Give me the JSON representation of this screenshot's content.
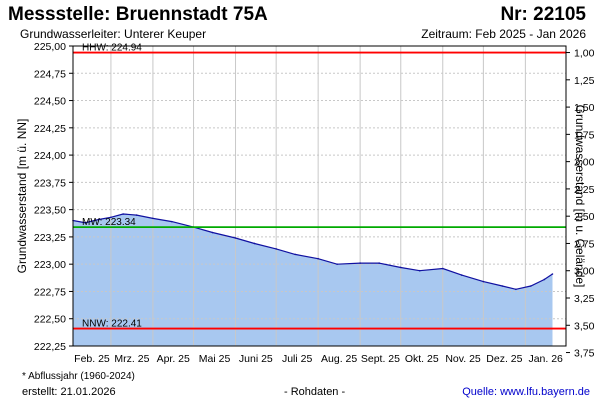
{
  "header": {
    "title": "Messstelle: Bruennstadt 75A",
    "number": "Nr: 22105",
    "aquifer": "Grundwasserleiter:   Unterer Keuper",
    "period": "Zeitraum: Feb 2025 - Jan 2026"
  },
  "footer": {
    "footnote": "* Abflussjahr (1960-2024)",
    "created": "erstellt:   21.01.2026",
    "raw_data": "- Rohdaten -",
    "source": "Quelle:  www.lfu.bayern.de"
  },
  "colors": {
    "hhw_line": "#ff0000",
    "nnw_line": "#ff0000",
    "mw_line": "#00aa00",
    "area_fill": "#a8c8f0",
    "series_line": "#1010a0",
    "grid": "#c8c8c8"
  },
  "chart_data": {
    "type": "area",
    "ylabel_left": "Grundwasserstand [m ü. NN]",
    "ylabel_right": "Grundwasserstand [m u. Gelände]",
    "ylim": [
      222.25,
      225.0
    ],
    "y_ticks_left": [
      "225,00",
      "224,75",
      "224,50",
      "224,25",
      "224,00",
      "223,75",
      "223,50",
      "223,25",
      "223,00",
      "222,75",
      "222,50",
      "222,25"
    ],
    "y_ticks_right": [
      "1,00",
      "1,25",
      "1,50",
      "1,75",
      "2,00",
      "2,25",
      "2,50",
      "2,75",
      "3,00",
      "3,25",
      "3,50",
      "3,75"
    ],
    "x_ticks": [
      "Feb. 25",
      "Mrz. 25",
      "Apr. 25",
      "Mai 25",
      "Juni 25",
      "Juli 25",
      "Aug. 25",
      "Sept. 25",
      "Okt. 25",
      "Nov. 25",
      "Dez. 25",
      "Jan. 26"
    ],
    "grid": true,
    "reference_lines": [
      {
        "label": "HHW: 224.94",
        "value": 224.94
      },
      {
        "label": "MW: 223.34",
        "value": 223.34
      },
      {
        "label": "NNW: 222.41",
        "value": 222.41
      }
    ],
    "series": [
      {
        "x": [
          "2025-02-01",
          "2025-02-10",
          "2025-02-20",
          "2025-03-01",
          "2025-03-10",
          "2025-03-20",
          "2025-04-01",
          "2025-04-15",
          "2025-05-01",
          "2025-05-15",
          "2025-06-01",
          "2025-06-15",
          "2025-07-01",
          "2025-07-15",
          "2025-08-01",
          "2025-08-15",
          "2025-09-01",
          "2025-09-15",
          "2025-10-01",
          "2025-10-15",
          "2025-11-01",
          "2025-11-15",
          "2025-12-01",
          "2025-12-15",
          "2025-12-25",
          "2026-01-05",
          "2026-01-15",
          "2026-01-21"
        ],
        "values": [
          223.4,
          223.38,
          223.41,
          223.43,
          223.46,
          223.45,
          223.42,
          223.39,
          223.34,
          223.29,
          223.24,
          223.19,
          223.14,
          223.09,
          223.05,
          223.0,
          223.01,
          223.01,
          222.97,
          222.94,
          222.96,
          222.9,
          222.84,
          222.8,
          222.77,
          222.8,
          222.86,
          222.91
        ]
      }
    ]
  }
}
